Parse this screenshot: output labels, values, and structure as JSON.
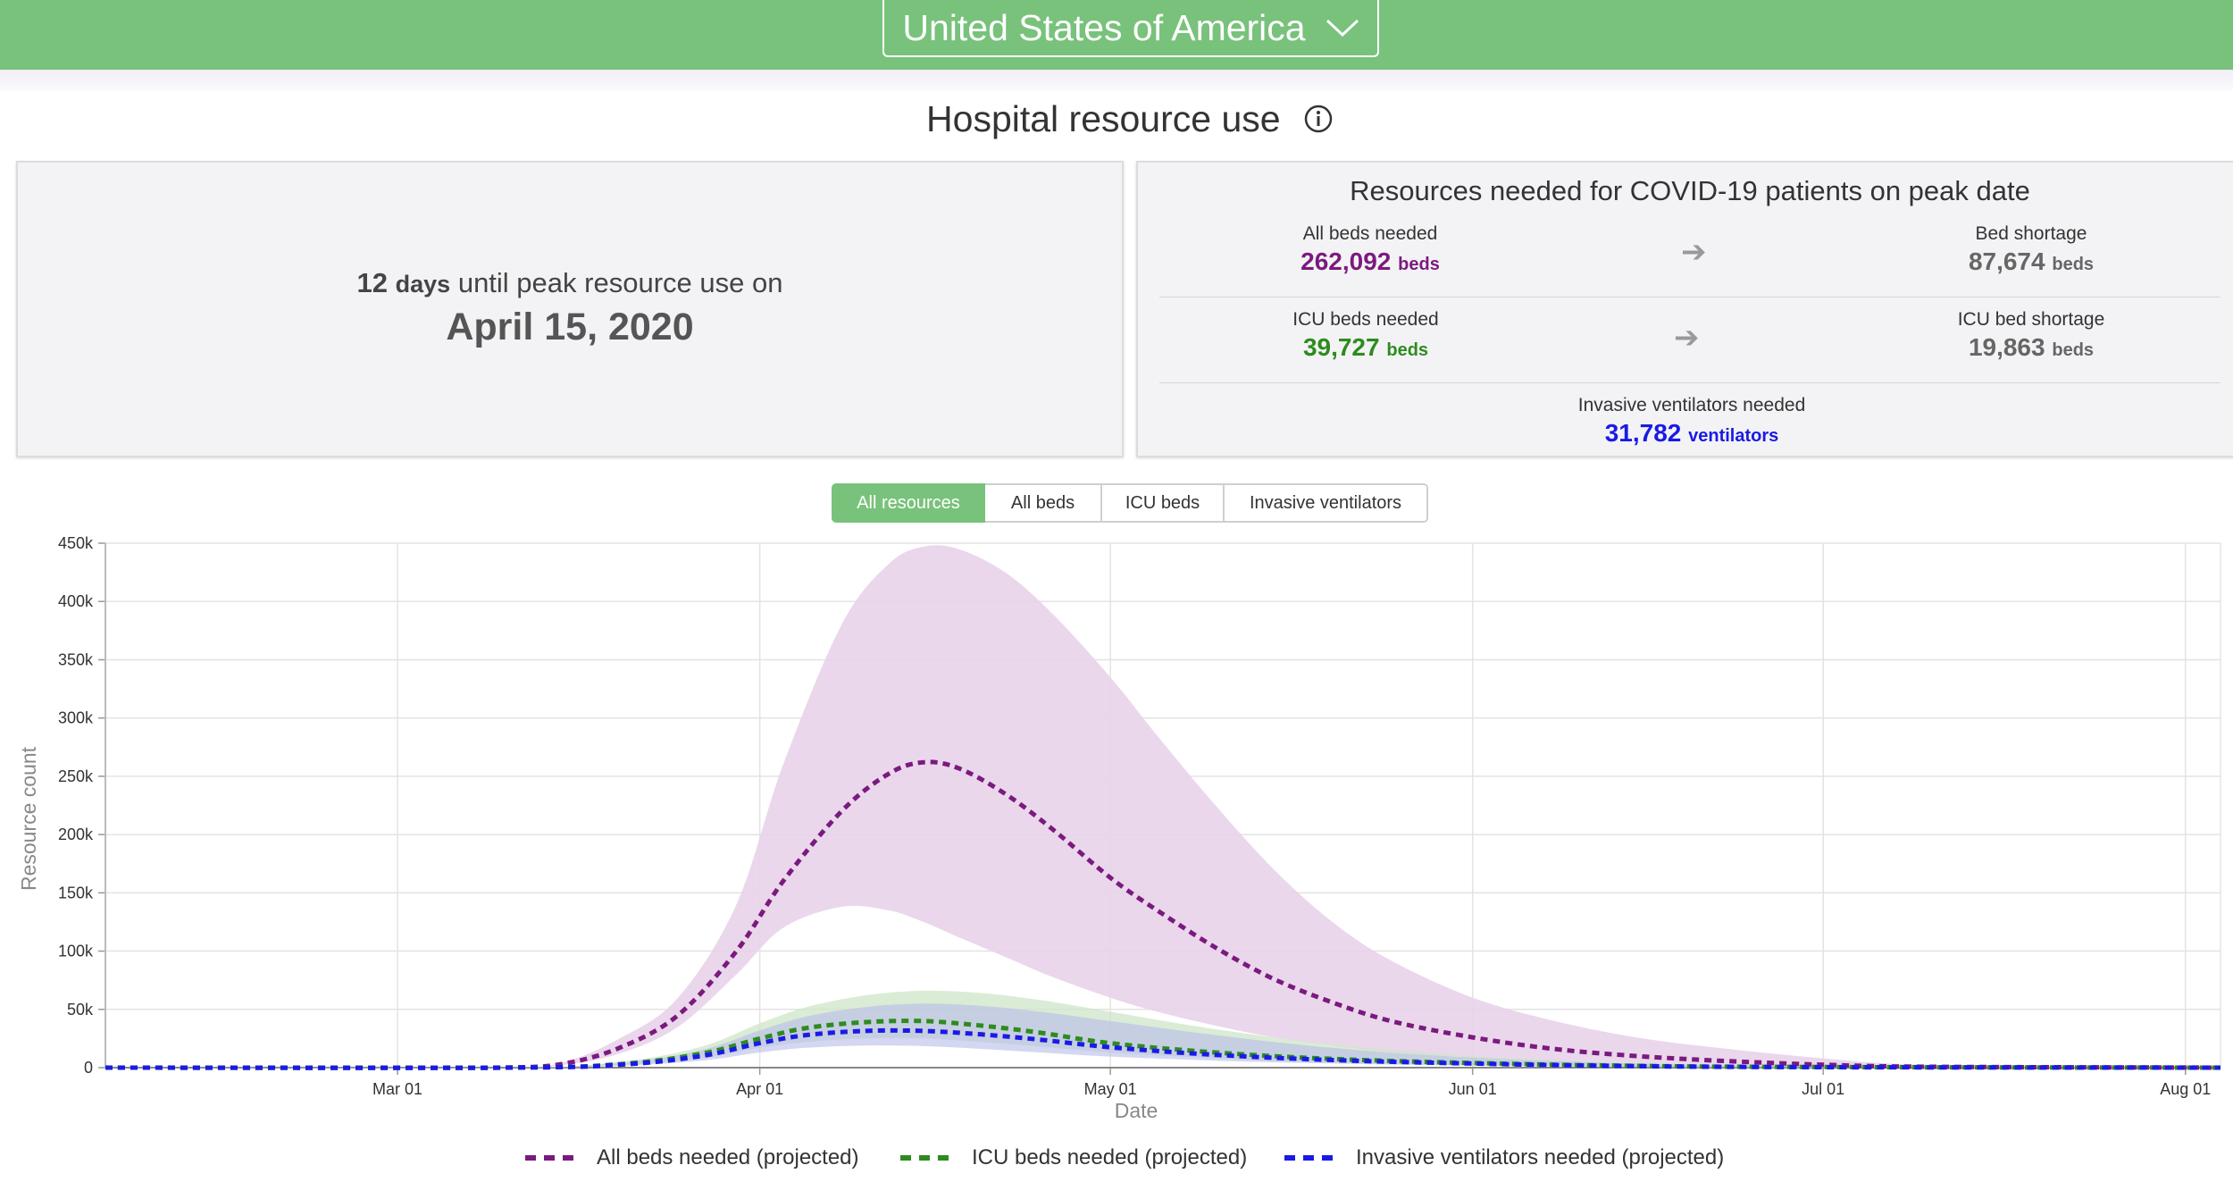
{
  "header": {
    "country": "United States of America"
  },
  "page_title": "Hospital resource use",
  "peak_card": {
    "days_value": "12",
    "days_unit": "days",
    "until_text": "until peak resource use on",
    "peak_date": "April 15, 2020"
  },
  "resources_card": {
    "title": "Resources needed for COVID-19 patients on peak date",
    "all_beds": {
      "label": "All beds needed",
      "value": "262,092",
      "unit": "beds"
    },
    "bed_shortage": {
      "label": "Bed shortage",
      "value": "87,674",
      "unit": "beds"
    },
    "icu_beds": {
      "label": "ICU beds needed",
      "value": "39,727",
      "unit": "beds"
    },
    "icu_shortage": {
      "label": "ICU bed shortage",
      "value": "19,863",
      "unit": "beds"
    },
    "ventilators": {
      "label": "Invasive ventilators needed",
      "value": "31,782",
      "unit": "ventilators"
    }
  },
  "tabs": [
    {
      "label": "All resources",
      "active": true
    },
    {
      "label": "All beds",
      "active": false
    },
    {
      "label": "ICU beds",
      "active": false
    },
    {
      "label": "Invasive ventilators",
      "active": false
    }
  ],
  "colors": {
    "brand_green": "#78c27b",
    "all_beds": "#7b1a7e",
    "icu_beds": "#2e8b1f",
    "ventilators": "#1a1ae6",
    "muted_value": "#666666"
  },
  "chart_data": {
    "type": "line",
    "xlabel": "Date",
    "ylabel": "Resource count",
    "ylim": [
      0,
      450000
    ],
    "yticks": [
      0,
      50000,
      100000,
      150000,
      200000,
      250000,
      300000,
      350000,
      400000,
      450000
    ],
    "ytick_labels": [
      "0",
      "50k",
      "100k",
      "150k",
      "200k",
      "250k",
      "300k",
      "350k",
      "400k",
      "450k"
    ],
    "xlim": [
      "2020-02-05",
      "2020-08-04"
    ],
    "xticks": [
      "2020-03-01",
      "2020-04-01",
      "2020-05-01",
      "2020-06-01",
      "2020-07-01",
      "2020-08-01"
    ],
    "xtick_labels": [
      "Mar 01",
      "Apr 01",
      "May 01",
      "Jun 01",
      "Jul 01",
      "Aug 01"
    ],
    "grid": true,
    "legend_position": "bottom",
    "series": [
      {
        "name": "All beds needed (projected)",
        "color": "#7b1a7e",
        "band_color": "#e8d3ea",
        "x": [
          "2020-02-05",
          "2020-03-01",
          "2020-03-10",
          "2020-03-15",
          "2020-03-20",
          "2020-03-25",
          "2020-03-30",
          "2020-04-03",
          "2020-04-08",
          "2020-04-12",
          "2020-04-15",
          "2020-04-18",
          "2020-04-22",
          "2020-04-26",
          "2020-05-01",
          "2020-05-05",
          "2020-05-10",
          "2020-05-15",
          "2020-05-20",
          "2020-05-25",
          "2020-06-01",
          "2020-06-08",
          "2020-06-15",
          "2020-06-22",
          "2020-07-01",
          "2020-07-10",
          "2020-08-04"
        ],
        "values": [
          0,
          0,
          0,
          3000,
          17000,
          45000,
          100000,
          160000,
          220000,
          252000,
          262000,
          257000,
          235000,
          205000,
          163000,
          135000,
          103000,
          76000,
          56000,
          40000,
          26000,
          16000,
          10000,
          6000,
          2500,
          800,
          0
        ],
        "lower": [
          0,
          0,
          0,
          2000,
          12000,
          35000,
          80000,
          120000,
          138000,
          135000,
          125000,
          112000,
          95000,
          78000,
          60000,
          48000,
          36000,
          26000,
          19000,
          13000,
          8000,
          5000,
          3000,
          1800,
          800,
          300,
          0
        ],
        "upper": [
          0,
          0,
          0,
          4000,
          25000,
          60000,
          140000,
          260000,
          380000,
          432000,
          447000,
          445000,
          425000,
          390000,
          335000,
          285000,
          225000,
          170000,
          125000,
          92000,
          60000,
          40000,
          26000,
          17000,
          8000,
          2500,
          0
        ]
      },
      {
        "name": "ICU beds needed (projected)",
        "color": "#2e8b1f",
        "band_color": "#cfe6c8",
        "x": [
          "2020-02-05",
          "2020-03-10",
          "2020-03-20",
          "2020-03-27",
          "2020-04-01",
          "2020-04-05",
          "2020-04-10",
          "2020-04-15",
          "2020-04-20",
          "2020-04-25",
          "2020-05-01",
          "2020-05-10",
          "2020-05-20",
          "2020-06-01",
          "2020-06-15",
          "2020-07-01",
          "2020-08-04"
        ],
        "values": [
          0,
          0,
          3000,
          12000,
          25000,
          34000,
          39000,
          40000,
          36000,
          30000,
          21000,
          13000,
          7500,
          4000,
          1500,
          500,
          0
        ],
        "lower": [
          0,
          0,
          2000,
          8000,
          17000,
          22000,
          25000,
          25000,
          22000,
          18000,
          13000,
          8000,
          4500,
          2000,
          800,
          200,
          0
        ],
        "upper": [
          0,
          0,
          5000,
          18000,
          38000,
          52000,
          62000,
          66000,
          64000,
          58000,
          48000,
          33000,
          20000,
          10000,
          4000,
          1200,
          0
        ]
      },
      {
        "name": "Invasive ventilators needed (projected)",
        "color": "#1a1ae6",
        "band_color": "#b8bde8",
        "x": [
          "2020-02-05",
          "2020-03-10",
          "2020-03-20",
          "2020-03-27",
          "2020-04-01",
          "2020-04-05",
          "2020-04-10",
          "2020-04-15",
          "2020-04-20",
          "2020-04-25",
          "2020-05-01",
          "2020-05-10",
          "2020-05-20",
          "2020-06-01",
          "2020-06-15",
          "2020-07-01",
          "2020-08-04"
        ],
        "values": [
          0,
          0,
          2500,
          10000,
          21000,
          28000,
          31500,
          31500,
          28500,
          24000,
          17500,
          11000,
          6500,
          3500,
          1300,
          400,
          0
        ],
        "lower": [
          0,
          0,
          1500,
          6000,
          13000,
          17000,
          19000,
          18500,
          16000,
          13000,
          9500,
          6000,
          3500,
          1800,
          700,
          200,
          0
        ],
        "upper": [
          0,
          0,
          4000,
          15000,
          32000,
          44000,
          52000,
          55000,
          53000,
          48000,
          40000,
          28000,
          17000,
          8500,
          3500,
          1000,
          0
        ]
      }
    ]
  }
}
